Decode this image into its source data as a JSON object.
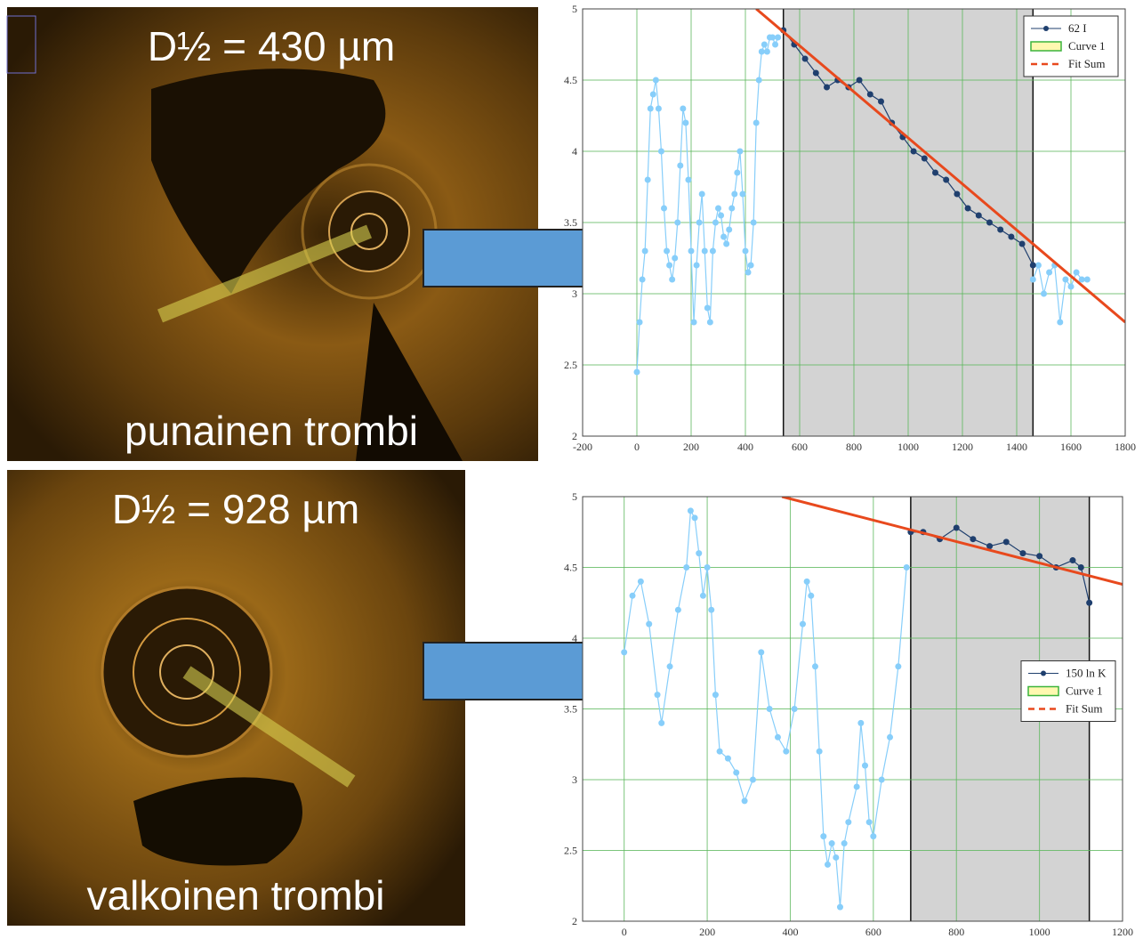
{
  "panels": [
    {
      "title": "D½ = 430 µm",
      "caption": "punainen trombi"
    },
    {
      "title": "D½ = 928 µm",
      "caption": "valkoinen trombi"
    }
  ],
  "chart_data": [
    {
      "type": "scatter",
      "xlim": [
        -200,
        1800
      ],
      "xticks": [
        -200,
        0,
        200,
        400,
        600,
        800,
        1000,
        1200,
        1400,
        1600,
        1800
      ],
      "ylim": [
        2,
        5
      ],
      "yticks": [
        2,
        2.5,
        3,
        3.5,
        4,
        4.5,
        5
      ],
      "grid": true,
      "legend": "top-right",
      "shade": {
        "name": "Curve 1",
        "x": [
          540,
          1460
        ]
      },
      "series": [
        {
          "color": "#87cefa",
          "mode": "markers+lines",
          "x": [
            0,
            10,
            20,
            30,
            40,
            50,
            60,
            70,
            80,
            90,
            100,
            110,
            120,
            130,
            140,
            150,
            160,
            170,
            180,
            190,
            200,
            210,
            220,
            230,
            240,
            250,
            260,
            270,
            280,
            290,
            300,
            310,
            320,
            330,
            340,
            350,
            360,
            370,
            380,
            390,
            400,
            410,
            420,
            430,
            440,
            450,
            460,
            470,
            480,
            490,
            500,
            510,
            520
          ],
          "values": [
            2.45,
            2.8,
            3.1,
            3.3,
            3.8,
            4.3,
            4.4,
            4.5,
            4.3,
            4.0,
            3.6,
            3.3,
            3.2,
            3.1,
            3.25,
            3.5,
            3.9,
            4.3,
            4.2,
            3.8,
            3.3,
            2.8,
            3.2,
            3.5,
            3.7,
            3.3,
            2.9,
            2.8,
            3.3,
            3.5,
            3.6,
            3.55,
            3.4,
            3.35,
            3.45,
            3.6,
            3.7,
            3.85,
            4.0,
            3.7,
            3.3,
            3.15,
            3.2,
            3.5,
            4.2,
            4.5,
            4.7,
            4.75,
            4.7,
            4.8,
            4.8,
            4.75,
            4.8
          ]
        },
        {
          "color": "#87cefa",
          "mode": "markers+lines",
          "x": [
            1460,
            1480,
            1500,
            1520,
            1540,
            1560,
            1580,
            1600,
            1620,
            1640,
            1660
          ],
          "values": [
            3.1,
            3.2,
            3.0,
            3.15,
            3.2,
            2.8,
            3.1,
            3.05,
            3.15,
            3.1,
            3.1
          ]
        },
        {
          "name": "62 I",
          "color": "#1f3f6e",
          "mode": "markers+lines",
          "x": [
            540,
            580,
            620,
            660,
            700,
            740,
            780,
            820,
            860,
            900,
            940,
            980,
            1020,
            1060,
            1100,
            1140,
            1180,
            1220,
            1260,
            1300,
            1340,
            1380,
            1420,
            1460
          ],
          "values": [
            4.85,
            4.75,
            4.65,
            4.55,
            4.45,
            4.5,
            4.45,
            4.5,
            4.4,
            4.35,
            4.2,
            4.1,
            4.0,
            3.95,
            3.85,
            3.8,
            3.7,
            3.6,
            3.55,
            3.5,
            3.45,
            3.4,
            3.35,
            3.2
          ]
        },
        {
          "name": "Fit Sum",
          "color": "#e8491d",
          "mode": "line",
          "x": [
            440,
            1800
          ],
          "values": [
            5,
            2.8
          ]
        }
      ]
    },
    {
      "type": "scatter",
      "xlim": [
        -100,
        1200
      ],
      "xticks": [
        0,
        200,
        400,
        600,
        800,
        1000,
        1200
      ],
      "ylim": [
        2,
        5
      ],
      "yticks": [
        2,
        2.5,
        3,
        3.5,
        4,
        4.5,
        5
      ],
      "grid": true,
      "legend": "center-right",
      "shade": {
        "name": "Curve 1",
        "x": [
          690,
          1120
        ]
      },
      "series": [
        {
          "color": "#87cefa",
          "mode": "markers+lines",
          "x": [
            0,
            20,
            40,
            60,
            80,
            90,
            110,
            130,
            150,
            160,
            170,
            180,
            190,
            200,
            210,
            220,
            230,
            250,
            270,
            290,
            310,
            330,
            350,
            370,
            390,
            410,
            430,
            440,
            450,
            460,
            470,
            480,
            490,
            500,
            510,
            520,
            530,
            540,
            560,
            570,
            580,
            590,
            600,
            620,
            640,
            660,
            680
          ],
          "values": [
            3.9,
            4.3,
            4.4,
            4.1,
            3.6,
            3.4,
            3.8,
            4.2,
            4.5,
            4.9,
            4.85,
            4.6,
            4.3,
            4.5,
            4.2,
            3.6,
            3.2,
            3.15,
            3.05,
            2.85,
            3.0,
            3.9,
            3.5,
            3.3,
            3.2,
            3.5,
            4.1,
            4.4,
            4.3,
            3.8,
            3.2,
            2.6,
            2.4,
            2.55,
            2.45,
            2.1,
            2.55,
            2.7,
            2.95,
            3.4,
            3.1,
            2.7,
            2.6,
            3.0,
            3.3,
            3.8,
            4.5
          ]
        },
        {
          "name": "150 ln K",
          "color": "#1f3f6e",
          "mode": "markers+lines",
          "x": [
            690,
            720,
            760,
            800,
            840,
            880,
            920,
            960,
            1000,
            1040,
            1080,
            1100,
            1120
          ],
          "values": [
            4.75,
            4.75,
            4.7,
            4.78,
            4.7,
            4.65,
            4.68,
            4.6,
            4.58,
            4.5,
            4.55,
            4.5,
            4.25
          ]
        },
        {
          "name": "Fit Sum",
          "color": "#e8491d",
          "mode": "line",
          "x": [
            380,
            1200
          ],
          "values": [
            5,
            4.38
          ]
        }
      ]
    }
  ]
}
